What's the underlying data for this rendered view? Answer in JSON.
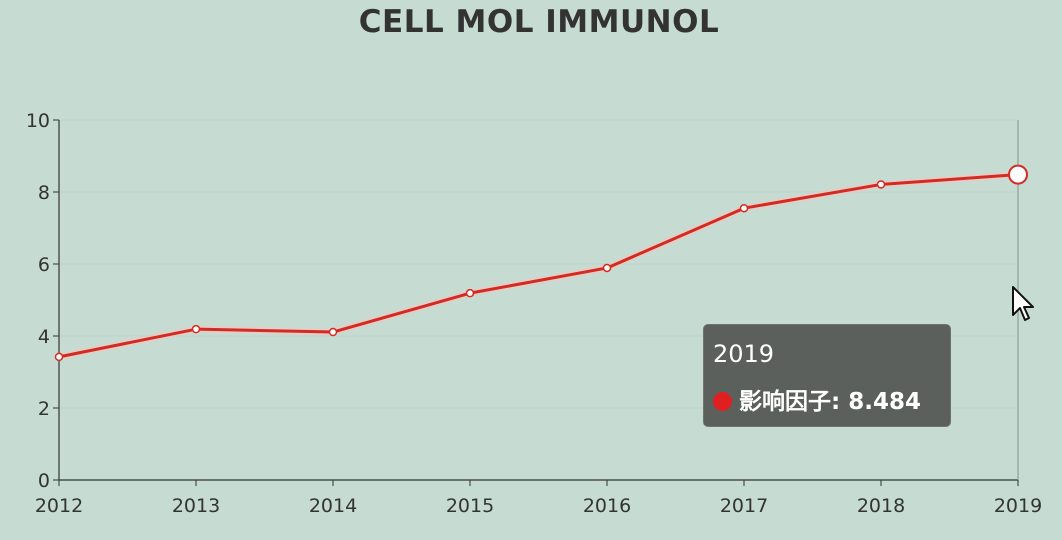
{
  "chart_data": {
    "type": "line",
    "title": "CELL MOL IMMUNOL",
    "categories": [
      "2012",
      "2013",
      "2014",
      "2015",
      "2016",
      "2017",
      "2018",
      "2019"
    ],
    "series": [
      {
        "name": "影响因子",
        "values": [
          3.42,
          4.19,
          4.11,
          5.19,
          5.89,
          7.55,
          8.21,
          8.484
        ]
      }
    ],
    "ylim": [
      0,
      10
    ],
    "yticks": [
      "0",
      "2",
      "4",
      "6",
      "8",
      "10"
    ],
    "grid": true,
    "colors": {
      "line": "#d42a22",
      "background": "#c6dbd2",
      "text": "#333333",
      "tooltip_bg": "#5b605d"
    }
  },
  "tooltip": {
    "title": "2019",
    "series_name": "影响因子",
    "value": "8.484",
    "label": "影响因子: 8.484"
  },
  "icons": {
    "cursor": "mouse-pointer-icon"
  }
}
